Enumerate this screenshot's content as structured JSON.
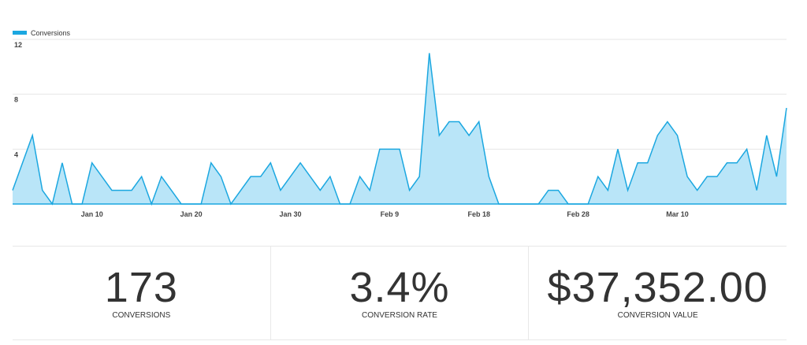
{
  "chart_data": {
    "type": "area",
    "legend": {
      "position": "top-left",
      "label": "Conversions",
      "color": "#1ba7e0"
    },
    "fill_color": "#b9e5f8",
    "grid": true,
    "ylim": [
      0,
      12
    ],
    "yticks": [
      {
        "value": 12,
        "label": "12"
      },
      {
        "value": 8,
        "label": "8"
      },
      {
        "value": 4,
        "label": "4"
      }
    ],
    "xticks": [
      {
        "index": 8,
        "label": "Jan 10"
      },
      {
        "index": 18,
        "label": "Jan 20"
      },
      {
        "index": 28,
        "label": "Jan 30"
      },
      {
        "index": 38,
        "label": "Feb 9"
      },
      {
        "index": 47,
        "label": "Feb 18"
      },
      {
        "index": 57,
        "label": "Feb 28"
      },
      {
        "index": 67,
        "label": "Mar 10"
      }
    ],
    "series": [
      {
        "name": "Conversions",
        "values": [
          1,
          3,
          5,
          1,
          0,
          3,
          0,
          0,
          3,
          2,
          1,
          1,
          1,
          2,
          0,
          2,
          1,
          0,
          0,
          0,
          3,
          2,
          0,
          1,
          2,
          2,
          3,
          1,
          2,
          3,
          2,
          1,
          2,
          0,
          0,
          2,
          1,
          4,
          4,
          4,
          1,
          2,
          11,
          5,
          6,
          6,
          5,
          6,
          2,
          0,
          0,
          0,
          0,
          0,
          1,
          1,
          0,
          0,
          0,
          2,
          1,
          4,
          1,
          3,
          3,
          5,
          6,
          5,
          2,
          1,
          2,
          2,
          3,
          3,
          4,
          1,
          5,
          2,
          7
        ]
      }
    ]
  },
  "stats": [
    {
      "value": "173",
      "label": "CONVERSIONS"
    },
    {
      "value": "3.4%",
      "label": "CONVERSION RATE"
    },
    {
      "value": "$37,352.00",
      "label": "CONVERSION VALUE"
    }
  ]
}
